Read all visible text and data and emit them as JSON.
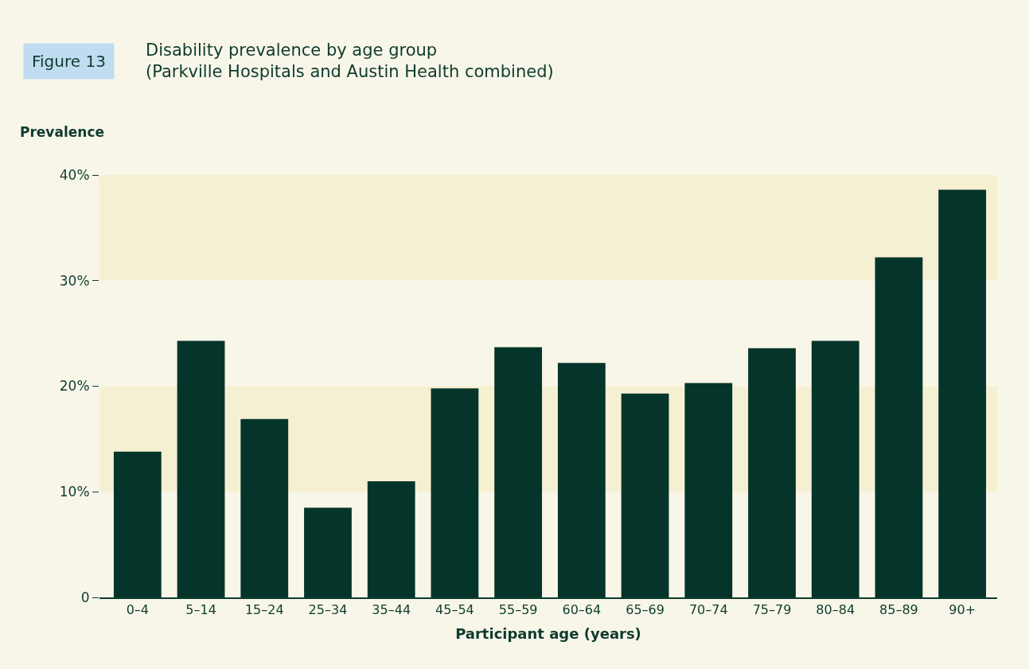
{
  "chart_data": {
    "type": "bar",
    "title": "Disability prevalence by age group\n(Parkville Hospitals and Austin Health combined)",
    "annotations": [
      "Figure 13"
    ],
    "ylabel": "Prevalence",
    "xlabel": "Participant age (years)",
    "categories": [
      "0–4",
      "5–14",
      "15–24",
      "25–34",
      "35–44",
      "45–54",
      "55–59",
      "60–64",
      "65–69",
      "70–74",
      "75–79",
      "80–84",
      "85–89",
      "90+"
    ],
    "values": [
      13.8,
      24.3,
      16.9,
      8.5,
      11.0,
      19.8,
      23.7,
      22.2,
      19.3,
      20.3,
      23.6,
      24.3,
      32.2,
      38.6
    ],
    "color": "#04342a",
    "ylim": [
      0,
      40
    ],
    "yticks": [
      0,
      {
        "value": 10,
        "label": "10%"
      },
      {
        "value": 20,
        "label": "20%"
      },
      {
        "value": 30,
        "label": "30%"
      },
      {
        "value": 40,
        "label": "40%"
      }
    ],
    "bands": [
      {
        "axis": "y",
        "from": 10,
        "to": 20,
        "color": "#f5f0d2"
      },
      {
        "axis": "y",
        "from": 30,
        "to": 40,
        "color": "#f5f0d2"
      }
    ],
    "grid": false
  }
}
